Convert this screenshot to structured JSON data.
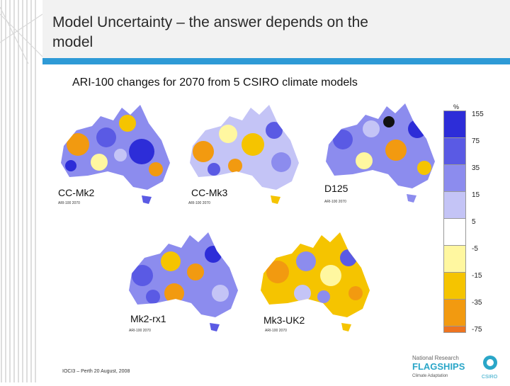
{
  "slide": {
    "title_line1": "Model Uncertainty – the answer depends on the",
    "title_line2": "model",
    "subtitle": "ARI-100 changes for 2070 from 5 CSIRO climate models",
    "footer": "IOCI3 – Perth 20 August, 2008"
  },
  "maps": [
    {
      "label": "CC-Mk2",
      "caption": "ARI-100 2070"
    },
    {
      "label": "CC-Mk3",
      "caption": "ARI-100 2070"
    },
    {
      "label": "D125",
      "caption": "ARI-100 2070"
    },
    {
      "label": "Mk2-rx1",
      "caption": "ARI-100 2070"
    },
    {
      "label": "Mk3-UK2",
      "caption": "ARI-100 2070"
    }
  ],
  "legend": {
    "unit": "%",
    "bins": [
      {
        "label": "155",
        "color": "#2d2dd8"
      },
      {
        "label": "75",
        "color": "#5a5ae4"
      },
      {
        "label": "35",
        "color": "#8c8cee"
      },
      {
        "label": "15",
        "color": "#c4c4f6"
      },
      {
        "label": "5",
        "color": "#ffffff"
      },
      {
        "label": "-5",
        "color": "#fff7a0"
      },
      {
        "label": "-15",
        "color": "#f5c400"
      },
      {
        "label": "-35",
        "color": "#f29a10"
      },
      {
        "label": "-75",
        "color": "#ee7420"
      }
    ]
  },
  "logo": {
    "line1": "National Research",
    "line2": "FLAGSHIPS",
    "line3": "Climate Adaptation",
    "org": "CSIRO"
  }
}
